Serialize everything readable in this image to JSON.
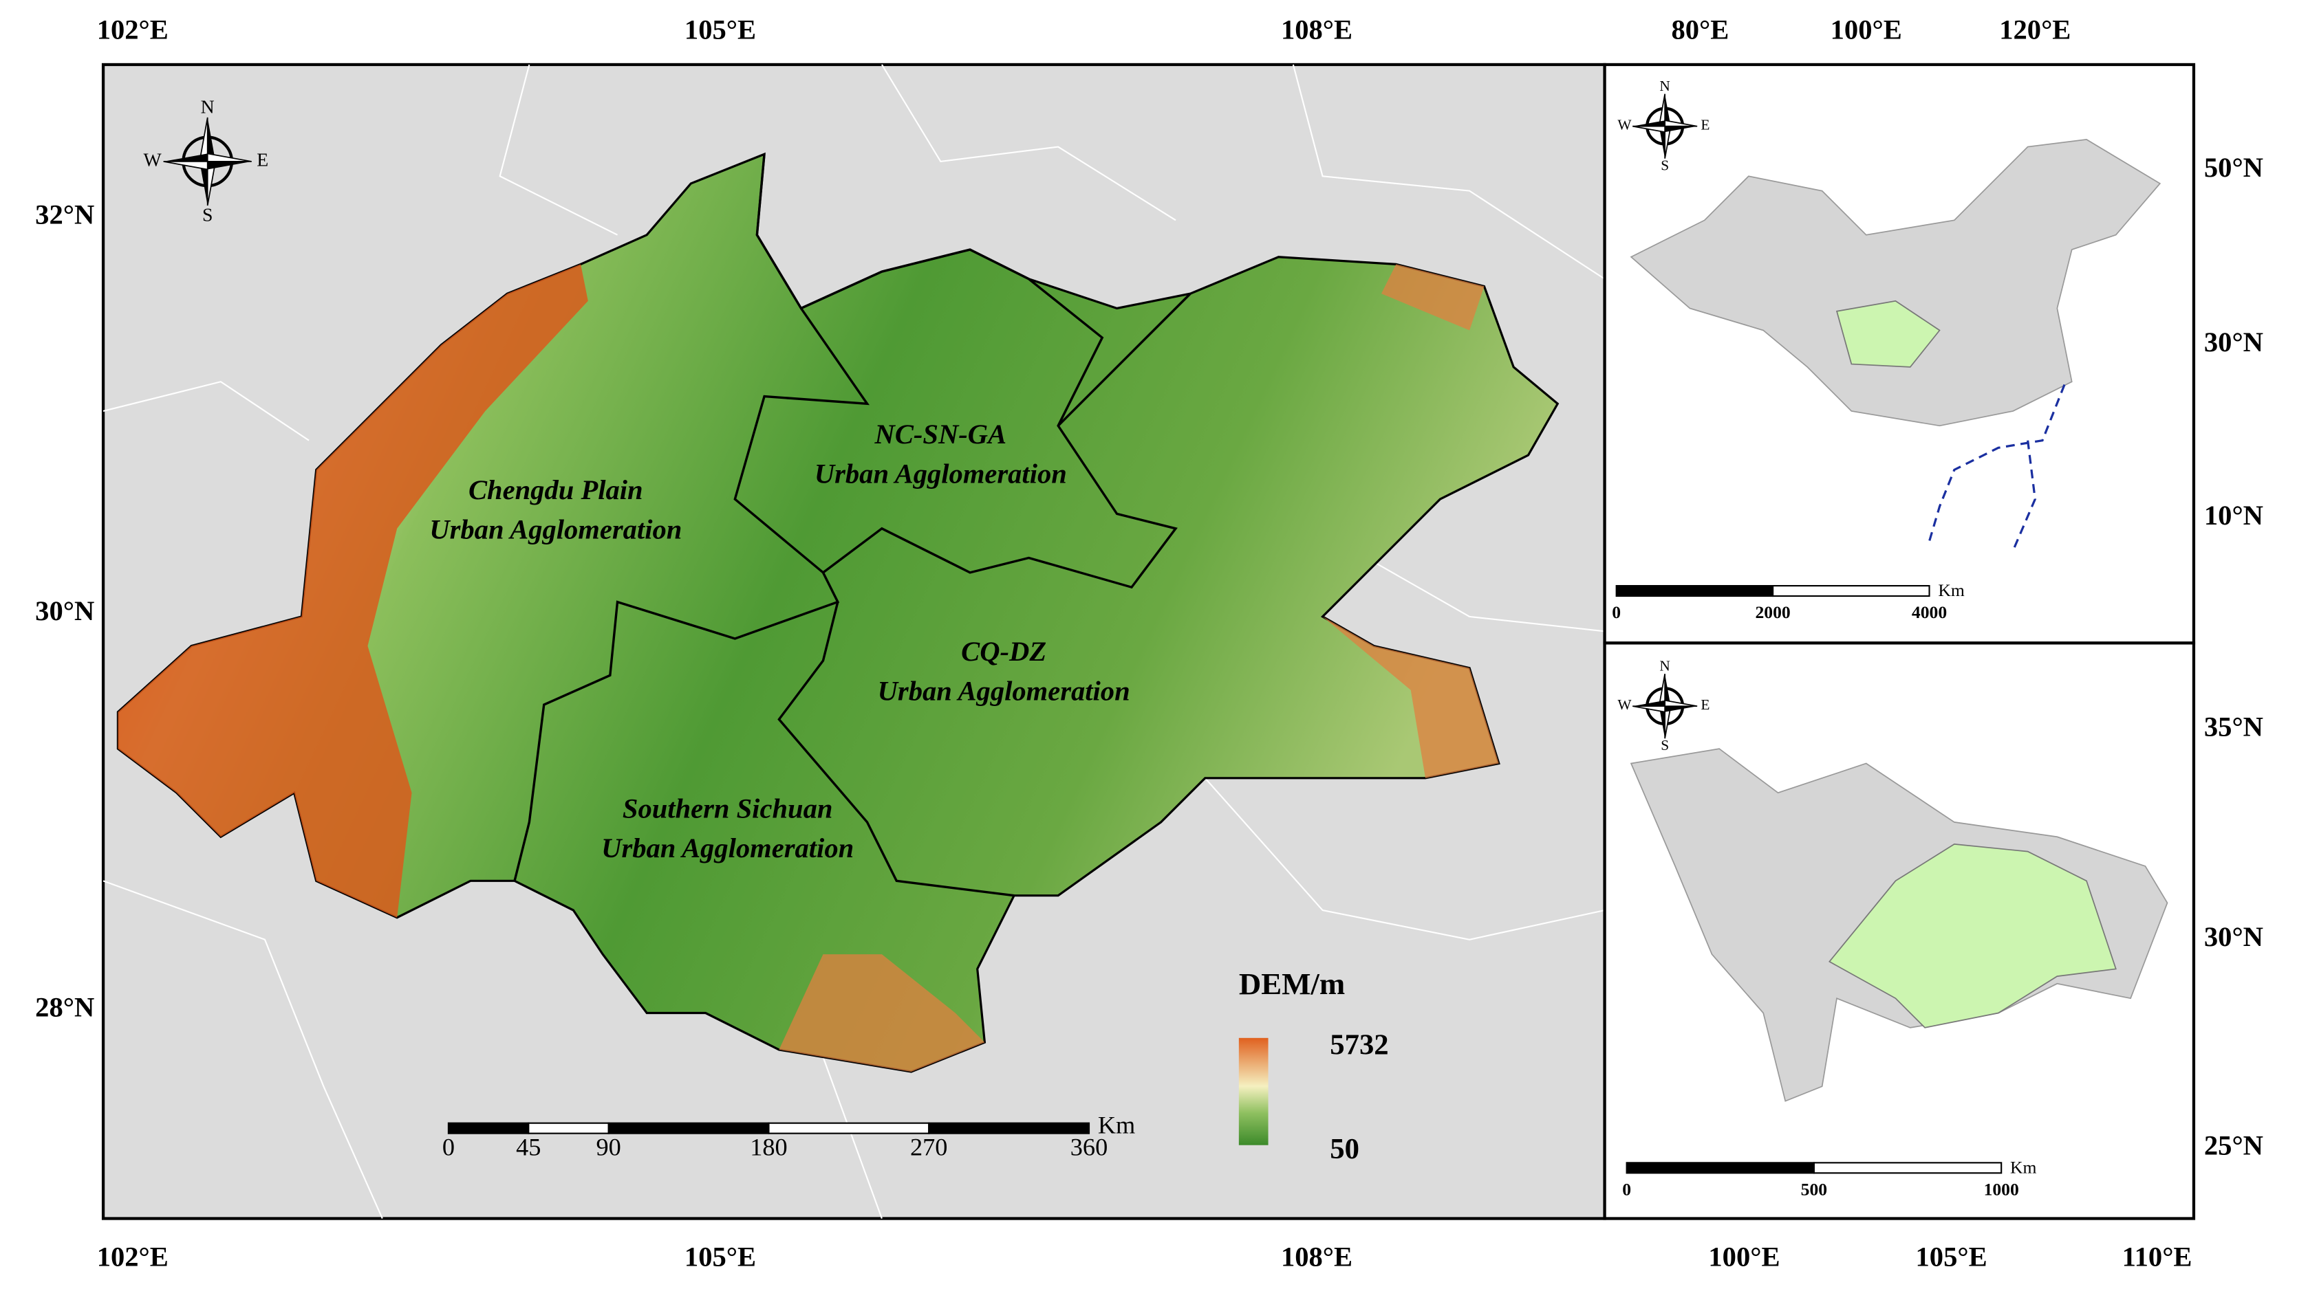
{
  "main_map": {
    "top_lon_labels": [
      "102°E",
      "105°E",
      "108°E"
    ],
    "bottom_lon_labels": [
      "102°E",
      "105°E",
      "108°E"
    ],
    "left_lat_labels": [
      "32°N",
      "30°N",
      "28°N"
    ],
    "regions": [
      {
        "lines": [
          "Chengdu Plain",
          "Urban Agglomeration"
        ]
      },
      {
        "lines": [
          "NC-SN-GA",
          "Urban Agglomeration"
        ]
      },
      {
        "lines": [
          "CQ-DZ",
          "Urban Agglomeration"
        ]
      },
      {
        "lines": [
          "Southern Sichuan",
          "Urban Agglomeration"
        ]
      }
    ],
    "legend": {
      "title": "DEM/m",
      "max": "5732",
      "min": "50"
    },
    "scale_bar": {
      "unit": "Km",
      "ticks": [
        0,
        45,
        90,
        180,
        270,
        360
      ]
    },
    "compass": [
      "N",
      "S",
      "E",
      "W"
    ]
  },
  "inset_china": {
    "top_lon_labels": [
      "80°E",
      "100°E",
      "120°E"
    ],
    "right_lat_labels": [
      "50°N",
      "30°N",
      "10°N"
    ],
    "scale_bar": {
      "unit": "Km",
      "ticks": [
        0,
        2000,
        4000
      ]
    },
    "compass": [
      "N",
      "S",
      "E",
      "W"
    ]
  },
  "inset_sichuan": {
    "bottom_lon_labels": [
      "100°E",
      "105°E",
      "110°E"
    ],
    "right_lat_labels": [
      "35°N",
      "30°N",
      "25°N"
    ],
    "scale_bar": {
      "unit": "Km",
      "ticks": [
        0,
        500,
        1000
      ]
    },
    "compass": [
      "N",
      "S",
      "E",
      "W"
    ]
  }
}
